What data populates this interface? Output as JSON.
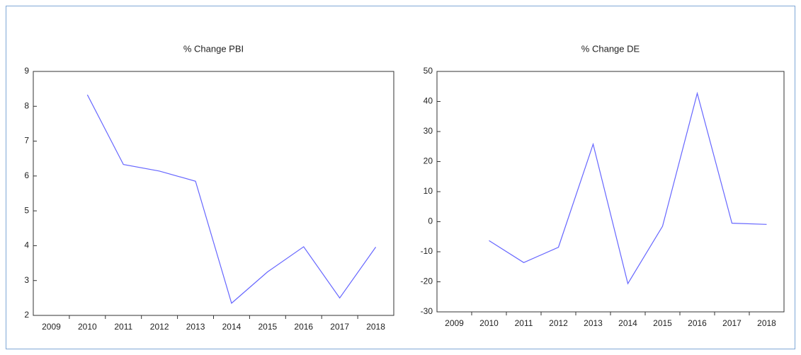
{
  "chart_data": [
    {
      "type": "line",
      "title": "% Change PBI",
      "categories": [
        "2009",
        "2010",
        "2011",
        "2012",
        "2013",
        "2014",
        "2015",
        "2016",
        "2017",
        "2018"
      ],
      "values": [
        null,
        8.33,
        6.33,
        6.14,
        5.85,
        2.35,
        3.25,
        3.97,
        2.5,
        3.96
      ],
      "color": "#6666ff",
      "ylim": [
        2,
        9
      ],
      "yticks": [
        2,
        3,
        4,
        5,
        6,
        7,
        8,
        9
      ],
      "grid": false
    },
    {
      "type": "line",
      "title": "% Change DE",
      "categories": [
        "2009",
        "2010",
        "2011",
        "2012",
        "2013",
        "2014",
        "2015",
        "2016",
        "2017",
        "2018"
      ],
      "values": [
        null,
        -6.3,
        -13.6,
        -8.5,
        25.8,
        -20.6,
        -1.5,
        42.7,
        -0.5,
        -0.9
      ],
      "color": "#6666ff",
      "ylim": [
        -30,
        50
      ],
      "yticks": [
        -30,
        -20,
        -10,
        0,
        10,
        20,
        30,
        40,
        50
      ],
      "grid": false
    }
  ]
}
